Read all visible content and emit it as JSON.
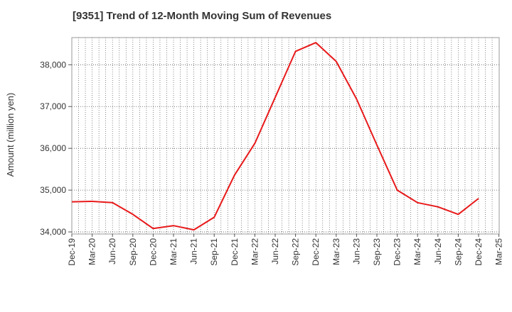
{
  "chart_data": {
    "type": "line",
    "title": "[9351]  Trend of 12-Month Moving Sum of Revenues",
    "xlabel": "",
    "ylabel": "Amount (million yen)",
    "x_tick_labels": [
      "Dec-19",
      "Mar-20",
      "Jun-20",
      "Sep-20",
      "Dec-20",
      "Mar-21",
      "Jun-21",
      "Sep-21",
      "Dec-21",
      "Mar-22",
      "Jun-22",
      "Sep-22",
      "Dec-22",
      "Mar-23",
      "Jun-23",
      "Sep-23",
      "Dec-23",
      "Mar-24",
      "Jun-24",
      "Sep-24",
      "Dec-24",
      "Mar-25"
    ],
    "y_ticks": [
      34000,
      35000,
      36000,
      37000,
      38000
    ],
    "y_tick_labels": [
      "34,000",
      "35,000",
      "36,000",
      "37,000",
      "38,000"
    ],
    "ylim": [
      33950,
      38650
    ],
    "grid": true,
    "series": [
      {
        "color": "#e8191a",
        "x": [
          "Dec-19",
          "Mar-20",
          "Jun-20",
          "Sep-20",
          "Dec-20",
          "Mar-21",
          "Jun-21",
          "Sep-21",
          "Dec-21",
          "Mar-22",
          "Jun-22",
          "Sep-22",
          "Dec-22",
          "Mar-23",
          "Jun-23",
          "Sep-23",
          "Dec-23",
          "Mar-24",
          "Jun-24",
          "Sep-24",
          "Dec-24"
        ],
        "values": [
          34720,
          34730,
          34700,
          34420,
          34080,
          34150,
          34050,
          34350,
          35360,
          36120,
          37220,
          38320,
          38530,
          38080,
          37180,
          36080,
          35000,
          34700,
          34600,
          34420,
          34800
        ]
      }
    ]
  }
}
